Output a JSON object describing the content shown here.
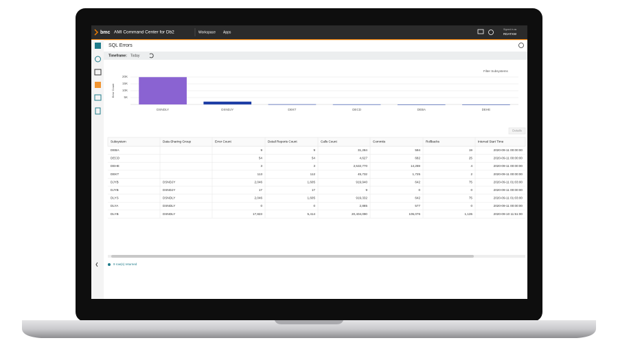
{
  "header": {
    "brand": "bmc",
    "app_title": "AMI Command Center for Db2",
    "nav": [
      "Workspace",
      "Apps"
    ],
    "signed_in_label": "Signed in as",
    "user": "RDATXW"
  },
  "page": {
    "title": "SQL Errors",
    "timeframe_label": "Timeframe:",
    "timeframe_value": "Today",
    "filter": "Filter Subsystems",
    "details_button": "Details",
    "footer": "9 row(s) returned"
  },
  "chart_data": {
    "type": "bar",
    "y_label": "Error Count",
    "categories": [
      "DSNDLY",
      "DSNDJY",
      "DEKT",
      "DECD",
      "DEBA",
      "DEHE"
    ],
    "values": [
      19869,
      2063,
      113,
      54,
      9,
      3
    ],
    "colors": [
      "#8a63d2",
      "#1f3fa6",
      "#1f3fa6",
      "#1f3fa6",
      "#1f3fa6",
      "#1f3fa6"
    ],
    "ylim": [
      0,
      20000
    ],
    "yticks": [
      {
        "value": 5000,
        "label": "5K"
      },
      {
        "value": 10000,
        "label": "10K"
      },
      {
        "value": 15000,
        "label": "15K"
      },
      {
        "value": 20000,
        "label": "20K"
      }
    ],
    "grid": true
  },
  "table": {
    "columns": [
      "Subsystem",
      "Data-Sharing Group",
      "Error Count",
      "Detail Reports Count",
      "Calls Count",
      "Commits",
      "Rollbacks",
      "Interval Start Time"
    ],
    "rows": [
      [
        "DEBA",
        null,
        "9",
        "9",
        "31,284",
        "594",
        "19",
        "2020-09-11 00:00:00"
      ],
      [
        "DECD",
        null,
        "54",
        "54",
        "4,627",
        "682",
        "25",
        "2020-09-11 00:00:00"
      ],
      [
        "DEHE",
        null,
        "3",
        "3",
        "2,532,770",
        "14,259",
        "4",
        "2020-09-11 00:00:00"
      ],
      [
        "DEKT",
        null,
        "113",
        "112",
        "45,732",
        "1,725",
        "2",
        "2020-09-11 00:00:00"
      ],
      [
        "DJYB",
        "DSNDJY",
        "2,046",
        "1,605",
        "919,940",
        "642",
        "75",
        "2020-09-11 01:03:00"
      ],
      [
        "DJYB",
        "DSNDJY",
        "17",
        "17",
        "9",
        "0",
        "0",
        "2020-09-11 00:00:00"
      ],
      [
        "DLYS",
        "DSNDLY",
        "2,046",
        "1,605",
        "919,332",
        "642",
        "75",
        "2020-09-11 01:03:00"
      ],
      [
        "DLYA",
        "DSNDLY",
        "0",
        "0",
        "2,885",
        "577",
        "0",
        "2020-09-11 00:00:00"
      ],
      [
        "DLYB",
        "DSNDLY",
        "17,823",
        "5,414",
        "20,404,090",
        "105,076",
        "1,135",
        "2020-09-10 11:51:00"
      ]
    ]
  }
}
